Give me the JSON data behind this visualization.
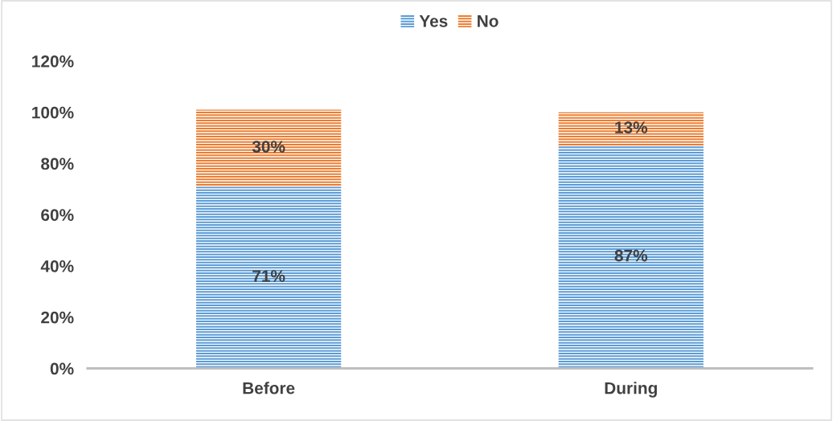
{
  "chart_data": {
    "type": "bar",
    "stacked": true,
    "categories": [
      "Before",
      "During"
    ],
    "series": [
      {
        "name": "Yes",
        "color": "#5b9bd5",
        "values": [
          71,
          87
        ],
        "value_labels": [
          "71%",
          "87%"
        ]
      },
      {
        "name": "No",
        "color": "#ed7d31",
        "values": [
          30,
          13
        ],
        "value_labels": [
          "30%",
          "13%"
        ]
      }
    ],
    "ylim": [
      0,
      120
    ],
    "yticks": [
      {
        "value": 0,
        "label": "0%"
      },
      {
        "value": 20,
        "label": "20%"
      },
      {
        "value": 40,
        "label": "40%"
      },
      {
        "value": 60,
        "label": "60%"
      },
      {
        "value": 80,
        "label": "80%"
      },
      {
        "value": 100,
        "label": "100%"
      },
      {
        "value": 120,
        "label": "120%"
      }
    ],
    "grid": false,
    "legend": "top"
  }
}
